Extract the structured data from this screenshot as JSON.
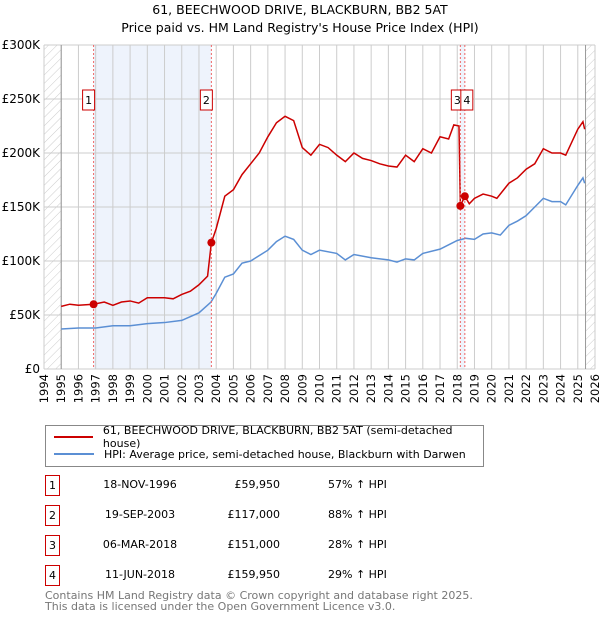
{
  "title": "61, BEECHWOOD DRIVE, BLACKBURN, BB2 5AT",
  "subtitle": "Price paid vs. HM Land Registry's House Price Index (HPI)",
  "chart_data": {
    "type": "line",
    "title": "61, BEECHWOOD DRIVE, BLACKBURN, BB2 5AT",
    "subtitle": "Price paid vs. HM Land Registry's House Price Index (HPI)",
    "xlim": [
      1994,
      2026
    ],
    "ylim": [
      0,
      300000
    ],
    "x_ticks": [
      "1994",
      "1995",
      "1996",
      "1997",
      "1998",
      "1999",
      "2000",
      "2001",
      "2002",
      "2003",
      "2004",
      "2005",
      "2006",
      "2007",
      "2008",
      "2009",
      "2010",
      "2011",
      "2012",
      "2013",
      "2014",
      "2015",
      "2016",
      "2017",
      "2018",
      "2019",
      "2020",
      "2021",
      "2022",
      "2023",
      "2024",
      "2025",
      "2026"
    ],
    "y_ticks": [
      {
        "v": 0,
        "l": "£0"
      },
      {
        "v": 50000,
        "l": "£50K"
      },
      {
        "v": 100000,
        "l": "£100K"
      },
      {
        "v": 150000,
        "l": "£150K"
      },
      {
        "v": 200000,
        "l": "£200K"
      },
      {
        "v": 250000,
        "l": "£250K"
      },
      {
        "v": 300000,
        "l": "£300K"
      }
    ],
    "grid": true,
    "series": [
      {
        "name": "61, BEECHWOOD DRIVE, BLACKBURN, BB2 5AT (semi-detached house)",
        "color": "#cc0000",
        "x": [
          1995,
          1995.5,
          1996,
          1996.88,
          1997.5,
          1998,
          1998.5,
          1999,
          1999.5,
          2000,
          2001,
          2001.5,
          2002,
          2002.5,
          2003,
          2003.5,
          2003.72,
          2004,
          2004.5,
          2005,
          2005.5,
          2006,
          2006.5,
          2007,
          2007.5,
          2008,
          2008.5,
          2009,
          2009.5,
          2010,
          2010.5,
          2011,
          2011.5,
          2012,
          2012.5,
          2013,
          2013.5,
          2014,
          2014.5,
          2015,
          2015.5,
          2016,
          2016.5,
          2017,
          2017.5,
          2017.8,
          2018.1,
          2018.18,
          2018.44,
          2018.7,
          2019,
          2019.5,
          2020,
          2020.3,
          2021,
          2021.5,
          2022,
          2022.5,
          2023,
          2023.5,
          2024,
          2024.3,
          2025,
          2025.3,
          2025.4
        ],
        "y": [
          58000,
          60000,
          59000,
          60000,
          62000,
          59000,
          62000,
          63000,
          61000,
          66000,
          66000,
          65000,
          69000,
          72000,
          78000,
          86000,
          117000,
          130000,
          160000,
          166000,
          180000,
          190000,
          200000,
          215000,
          228000,
          234000,
          230000,
          205000,
          198000,
          208000,
          205000,
          198000,
          192000,
          200000,
          195000,
          193000,
          190000,
          188000,
          187000,
          198000,
          192000,
          204000,
          200000,
          215000,
          213000,
          226000,
          225000,
          151000,
          160000,
          153000,
          158000,
          162000,
          160000,
          158000,
          172000,
          177000,
          185000,
          190000,
          204000,
          200000,
          200000,
          198000,
          222000,
          229000,
          222000
        ]
      },
      {
        "name": "HPI: Average price, semi-detached house, Blackburn with Darwen",
        "color": "#5b8fd4",
        "x": [
          1995,
          1996,
          1997,
          1998,
          1999,
          2000,
          2001,
          2002,
          2003,
          2003.7,
          2004,
          2004.5,
          2005,
          2005.5,
          2006,
          2007,
          2007.5,
          2008,
          2008.5,
          2009,
          2009.5,
          2010,
          2011,
          2011.5,
          2012,
          2013,
          2014,
          2014.5,
          2015,
          2015.5,
          2016,
          2017,
          2017.5,
          2018,
          2018.5,
          2019,
          2019.5,
          2020,
          2020.5,
          2021,
          2021.5,
          2022,
          2022.5,
          2023,
          2023.5,
          2024,
          2024.3,
          2025,
          2025.3,
          2025.4
        ],
        "y": [
          37000,
          38000,
          38000,
          40000,
          40000,
          42000,
          43000,
          45000,
          52000,
          62000,
          70000,
          85000,
          88000,
          98000,
          100000,
          110000,
          118000,
          123000,
          120000,
          110000,
          106000,
          110000,
          107000,
          101000,
          106000,
          103000,
          101000,
          99000,
          102000,
          101000,
          107000,
          111000,
          115000,
          119000,
          121000,
          120000,
          125000,
          126000,
          124000,
          133000,
          137000,
          142000,
          150000,
          158000,
          155000,
          155000,
          152000,
          170000,
          177000,
          172000
        ]
      }
    ],
    "sales": [
      {
        "id": "1",
        "x": 1996.88,
        "y": 59950
      },
      {
        "id": "2",
        "x": 2003.72,
        "y": 117000
      },
      {
        "id": "3",
        "x": 2018.18,
        "y": 151000
      },
      {
        "id": "4",
        "x": 2018.44,
        "y": 159950
      }
    ],
    "legend_position": "below"
  },
  "legend": {
    "red": "61, BEECHWOOD DRIVE, BLACKBURN, BB2 5AT (semi-detached house)",
    "blue": "HPI: Average price, semi-detached house, Blackburn with Darwen"
  },
  "rows": [
    {
      "n": "1",
      "date": "18-NOV-1996",
      "price": "£59,950",
      "hpi": "57% ↑ HPI"
    },
    {
      "n": "2",
      "date": "19-SEP-2003",
      "price": "£117,000",
      "hpi": "88% ↑ HPI"
    },
    {
      "n": "3",
      "date": "06-MAR-2018",
      "price": "£151,000",
      "hpi": "28% ↑ HPI"
    },
    {
      "n": "4",
      "date": "11-JUN-2018",
      "price": "£159,950",
      "hpi": "29% ↑ HPI"
    }
  ],
  "footer": [
    "Contains HM Land Registry data © Crown copyright and database right 2025.",
    "This data is licensed under the Open Government Licence v3.0."
  ]
}
